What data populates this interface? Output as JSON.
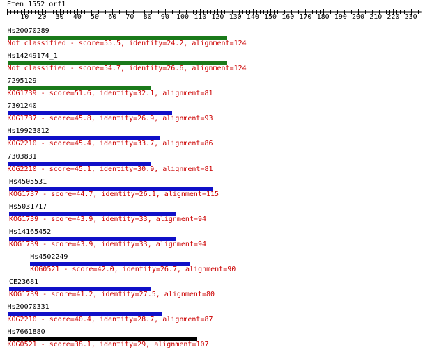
{
  "query": {
    "name": "Eten_1552_orf1",
    "length": 236,
    "ticks": [
      10,
      20,
      30,
      40,
      50,
      60,
      70,
      80,
      90,
      100,
      110,
      120,
      130,
      140,
      150,
      160,
      170,
      180,
      190,
      200,
      210,
      220,
      230
    ]
  },
  "colors": {
    "name_text": "#000000",
    "desc_text": "#cc0000",
    "not_classified_bar": "#1a7a1a",
    "kog1739_bar": "#1a7a1a",
    "blue_bar": "#1010c8",
    "black_bar": "#000000"
  },
  "hits": [
    {
      "name": "Hs20070289",
      "desc": "Not classified - score=55.5, identity=24.2, alignment=124",
      "start": 1,
      "end": 125,
      "color": "#1a7a1a"
    },
    {
      "name": "Hs14249174_1",
      "desc": "Not classified - score=54.7, identity=26.6, alignment=124",
      "start": 1,
      "end": 125,
      "color": "#1a7a1a"
    },
    {
      "name": "7295129",
      "desc": "KOG1739 - score=51.6, identity=32.1, alignment=81",
      "start": 1,
      "end": 82,
      "color": "#1a7a1a"
    },
    {
      "name": "7301240",
      "desc": "KOG1737 - score=45.8, identity=26.9, alignment=93",
      "start": 1,
      "end": 94,
      "color": "#1010c8"
    },
    {
      "name": "Hs19923812",
      "desc": "KOG2210 - score=45.4, identity=33.7, alignment=86",
      "start": 1,
      "end": 87,
      "color": "#1010c8"
    },
    {
      "name": "7303831",
      "desc": "KOG2210 - score=45.1, identity=30.9, alignment=81",
      "start": 1,
      "end": 82,
      "color": "#1010c8"
    },
    {
      "name": "Hs4505531",
      "desc": "KOG1737 - score=44.7, identity=26.1, alignment=115",
      "start": 2,
      "end": 117,
      "color": "#1010c8"
    },
    {
      "name": "Hs5031717",
      "desc": "KOG1739 - score=43.9, identity=33, alignment=94",
      "start": 2,
      "end": 96,
      "color": "#1010c8"
    },
    {
      "name": "Hs14165452",
      "desc": "KOG1739 - score=43.9, identity=33, alignment=94",
      "start": 2,
      "end": 96,
      "color": "#1010c8"
    },
    {
      "name": "Hs4502249",
      "desc": "KOG0521 - score=42.0, identity=26.7, alignment=90",
      "start": 14,
      "end": 104,
      "color": "#1010c8"
    },
    {
      "name": "CE23681",
      "desc": "KOG1739 - score=41.2, identity=27.5, alignment=80",
      "start": 2,
      "end": 82,
      "color": "#1010c8"
    },
    {
      "name": "Hs20070331",
      "desc": "KOG2210 - score=40.4, identity=28.7, alignment=87",
      "start": 1,
      "end": 88,
      "color": "#1010c8"
    },
    {
      "name": "Hs7661880",
      "desc": "KOG0521 - score=38.1, identity=29, alignment=107",
      "start": 1,
      "end": 108,
      "color": "#000000"
    }
  ]
}
